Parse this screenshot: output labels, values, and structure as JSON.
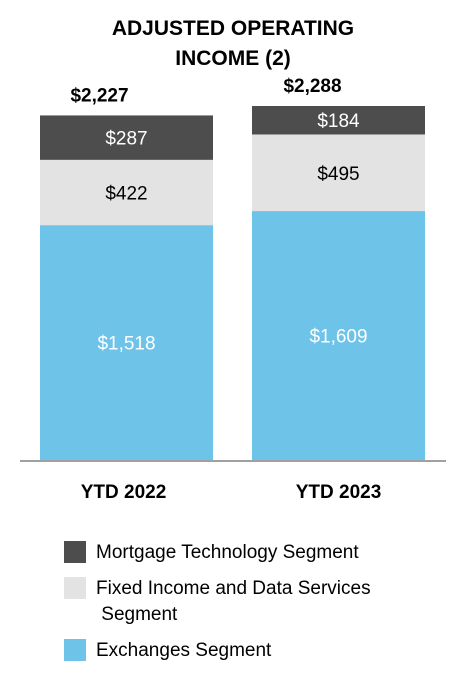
{
  "chart_data": {
    "type": "stacked-bar",
    "title_lines": [
      "ADJUSTED OPERATING",
      "INCOME (2)"
    ],
    "categories": [
      "YTD 2022",
      "YTD 2023"
    ],
    "totals": [
      "$2,227",
      "$2,288"
    ],
    "total_values": [
      2227,
      2288
    ],
    "series": [
      {
        "name": "Exchanges Segment",
        "values": [
          1518,
          1609
        ],
        "labels": [
          "$1,518",
          "$1,609"
        ],
        "color": "#6ec3e8",
        "label_color": "#ffffff"
      },
      {
        "name": "Fixed Income and Data Services Segment",
        "values": [
          422,
          495
        ],
        "labels": [
          "$422",
          "$495"
        ],
        "color": "#e3e3e3",
        "label_color": "#000000"
      },
      {
        "name": "Mortgage Technology Segment",
        "values": [
          287,
          184
        ],
        "labels": [
          "$287",
          "$184"
        ],
        "color": "#4d4d4d",
        "label_color": "#ffffff"
      }
    ],
    "legend_order": [
      2,
      1,
      0
    ],
    "legend_lines": [
      [
        "Mortgage Technology Segment"
      ],
      [
        "Fixed Income and Data Services",
        " Segment"
      ],
      [
        "Exchanges Segment"
      ]
    ],
    "ylim": [
      0,
      2288
    ],
    "grid": false,
    "legend_position": "bottom"
  }
}
